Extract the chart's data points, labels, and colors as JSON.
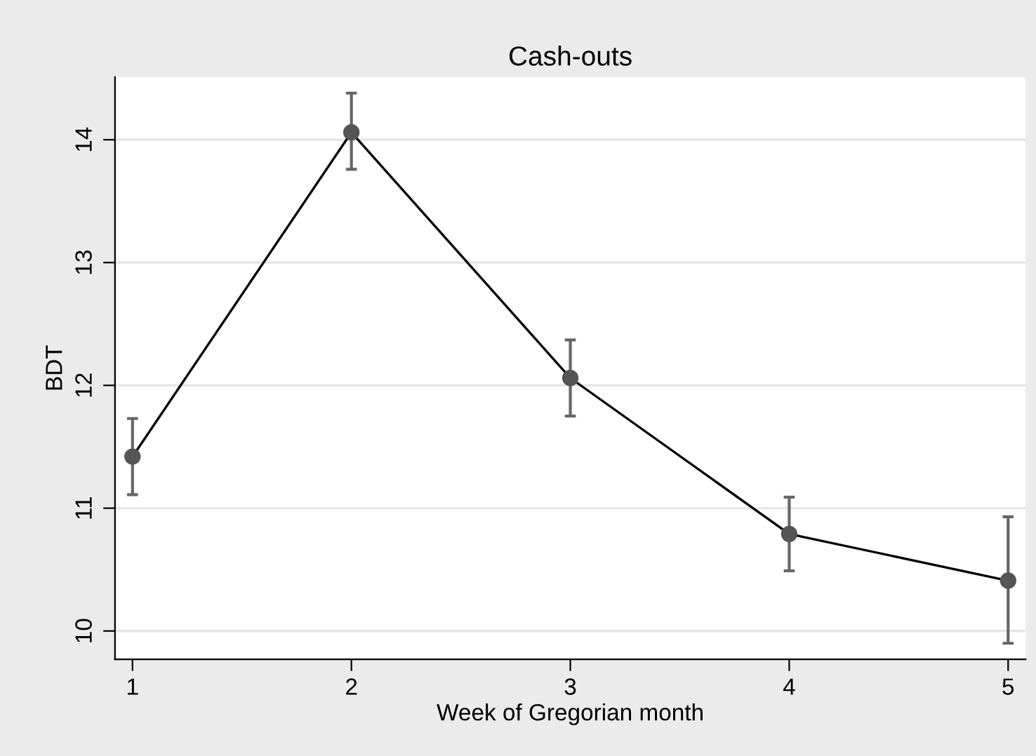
{
  "chart_data": {
    "type": "line",
    "title": "Cash-outs",
    "xlabel": "Week of Gregorian month",
    "ylabel": "BDT",
    "x": [
      1,
      2,
      3,
      4,
      5
    ],
    "series": [
      {
        "color": "#000000",
        "values": [
          11.42,
          14.06,
          12.06,
          10.79,
          10.41
        ],
        "errors": [
          [
            11.11,
            11.73
          ],
          [
            13.76,
            14.38
          ],
          [
            11.75,
            12.37
          ],
          [
            10.49,
            11.09
          ],
          [
            9.9,
            10.93
          ]
        ]
      }
    ],
    "xlim": [
      0.92,
      5.08
    ],
    "xticks": [
      1,
      2,
      3,
      4,
      5
    ],
    "ylim": [
      9.77,
      14.51
    ],
    "yticks": [
      10,
      11,
      12,
      13,
      14
    ],
    "grid": "y",
    "marker": "circle",
    "line_style": "solid",
    "legend": false
  }
}
